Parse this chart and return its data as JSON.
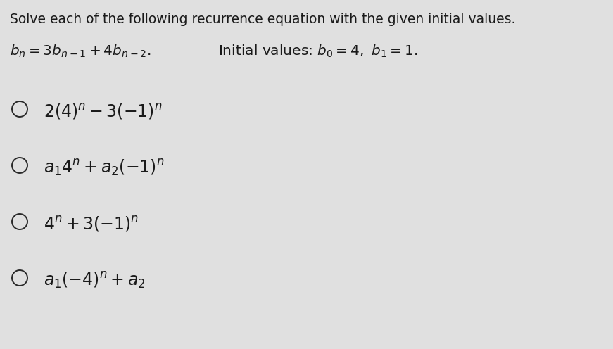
{
  "background_color": "#e0e0e0",
  "title_text": "Solve each of the following recurrence equation with the given initial values.",
  "recurrence_line": "bₙ = 3bₙ₋₁ + 4bₙ₋₂.    Initial values: b₀ = 4, b₁ = 1.",
  "options_plain": [
    "2(4)ⁿ−3(−1)ⁿ",
    "a₁ 4ⁿ + a₂(−1)ⁿ",
    "4ⁿ + 3(−1)ⁿ",
    "a₁(−4)ⁿ + a₂"
  ],
  "title_fontsize": 13.5,
  "recurrence_fontsize": 14.5,
  "option_fontsize": 17,
  "text_color": "#1a1a1a",
  "circle_color": "#2a2a2a",
  "circle_linewidth": 1.4
}
